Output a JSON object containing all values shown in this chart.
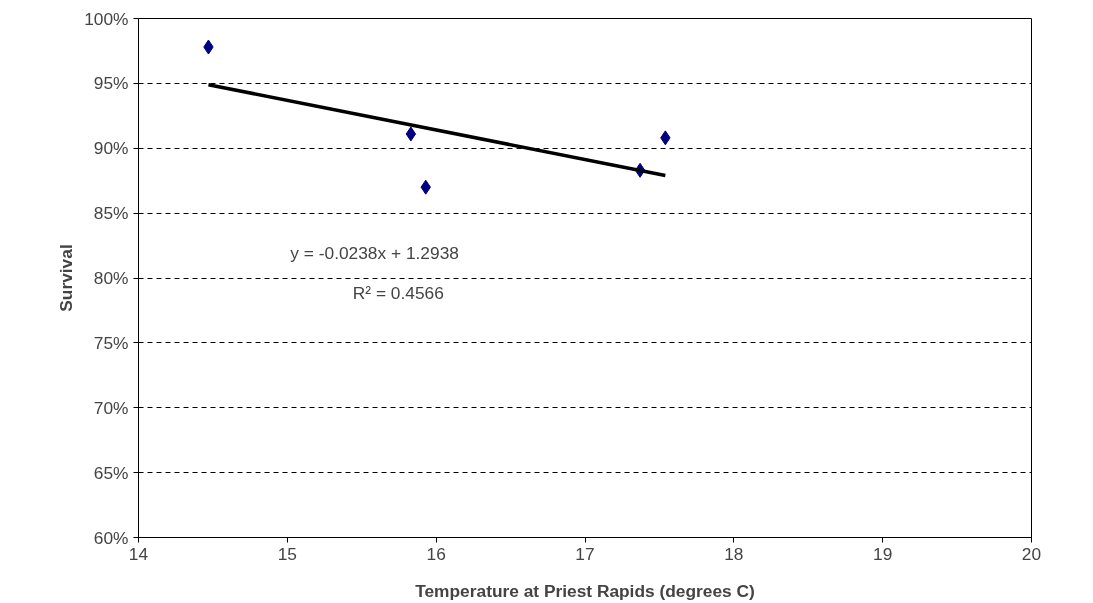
{
  "chart_data": {
    "type": "scatter",
    "xlabel": "Temperature at Priest Rapids (degrees C)",
    "ylabel": "Survival",
    "xlim": [
      14,
      20
    ],
    "xticks": [
      14,
      15,
      16,
      17,
      18,
      19,
      20
    ],
    "ylim": [
      60,
      100
    ],
    "yticks": [
      {
        "value": 60,
        "label": "60%"
      },
      {
        "value": 65,
        "label": "65%"
      },
      {
        "value": 70,
        "label": "70%"
      },
      {
        "value": 75,
        "label": "75%"
      },
      {
        "value": 80,
        "label": "80%"
      },
      {
        "value": 85,
        "label": "85%"
      },
      {
        "value": 90,
        "label": "90%"
      },
      {
        "value": 95,
        "label": "95%"
      },
      {
        "value": 100,
        "label": "100%"
      }
    ],
    "grid": "y",
    "marker": "diamond",
    "series": [
      {
        "color": "#000080",
        "x": [
          14.47,
          15.83,
          15.93,
          17.37,
          17.54
        ],
        "values": [
          97.8,
          91.1,
          87.0,
          88.3,
          90.8
        ]
      },
      {
        "type": "line",
        "color": "#000000",
        "line_style": "solid",
        "marker": "none",
        "x": [
          14.47,
          17.54
        ],
        "values": [
          94.9,
          87.9
        ]
      }
    ],
    "annotations": [
      "y = -0.0238x + 1.2938",
      "R² = 0.4566"
    ]
  }
}
